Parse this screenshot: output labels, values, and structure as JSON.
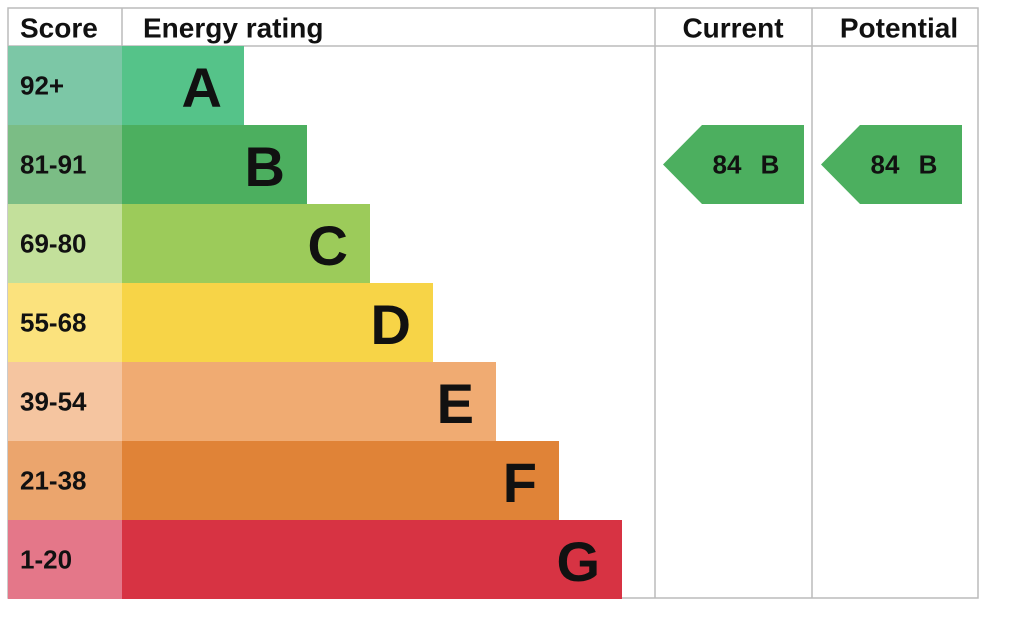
{
  "header": {
    "score": "Score",
    "energy_rating": "Energy rating",
    "current": "Current",
    "potential": "Potential"
  },
  "rows": [
    {
      "score": "92+",
      "letter": "A"
    },
    {
      "score": "81-91",
      "letter": "B"
    },
    {
      "score": "69-80",
      "letter": "C"
    },
    {
      "score": "55-68",
      "letter": "D"
    },
    {
      "score": "39-54",
      "letter": "E"
    },
    {
      "score": "21-38",
      "letter": "F"
    },
    {
      "score": "1-20",
      "letter": "G"
    }
  ],
  "current": {
    "value": 84,
    "letter": "B"
  },
  "potential": {
    "value": 84,
    "letter": "B"
  }
}
